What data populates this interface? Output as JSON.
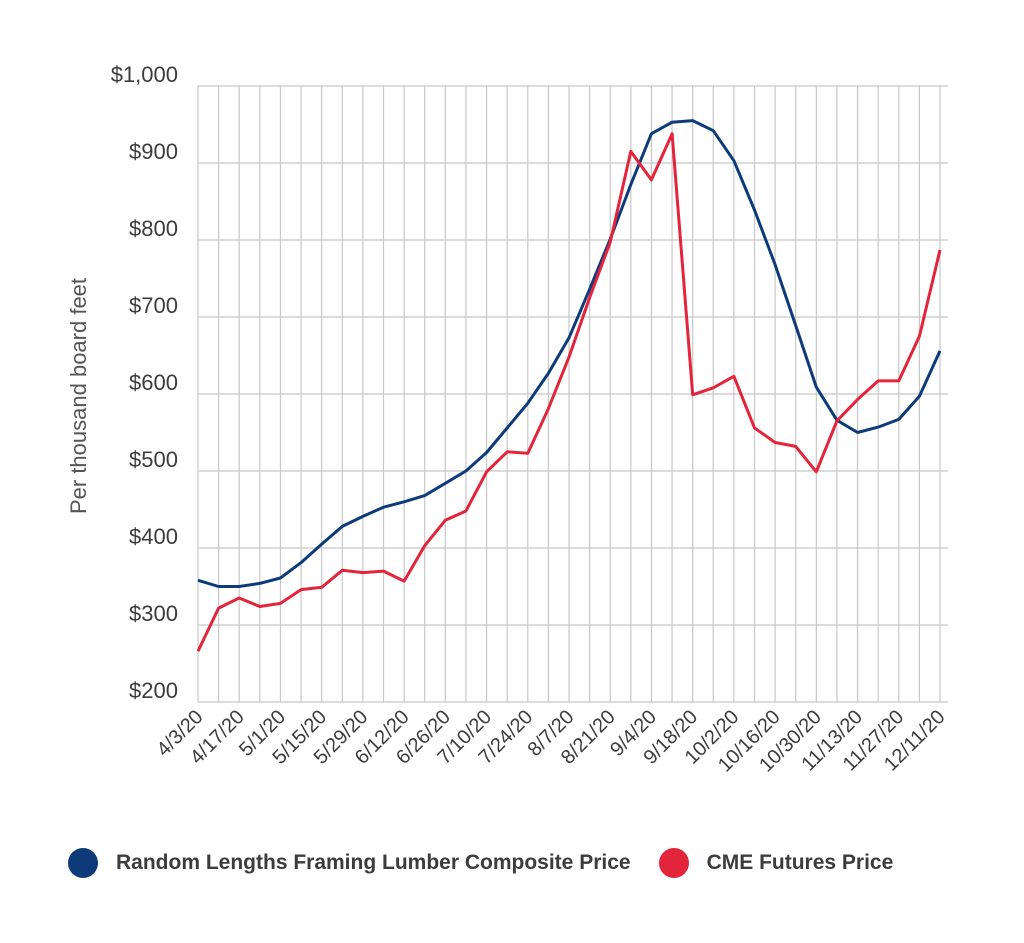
{
  "chart_data": {
    "type": "line",
    "title": "",
    "xlabel": "",
    "ylabel": "Per thousand board feet",
    "ylim": [
      200,
      1000
    ],
    "yticks": [
      200,
      300,
      400,
      500,
      600,
      700,
      800,
      900,
      1000
    ],
    "ytick_labels": [
      "$200",
      "$300",
      "$400",
      "$500",
      "$600",
      "$700",
      "$800",
      "$900",
      "$1,000"
    ],
    "x": [
      "4/3/20",
      "4/10/20",
      "4/17/20",
      "4/24/20",
      "5/1/20",
      "5/8/20",
      "5/15/20",
      "5/22/20",
      "5/29/20",
      "6/5/20",
      "6/12/20",
      "6/19/20",
      "6/26/20",
      "7/3/20",
      "7/10/20",
      "7/17/20",
      "7/24/20",
      "7/31/20",
      "8/7/20",
      "8/14/20",
      "8/21/20",
      "8/28/20",
      "9/4/20",
      "9/11/20",
      "9/18/20",
      "9/25/20",
      "10/2/20",
      "10/9/20",
      "10/16/20",
      "10/23/20",
      "10/30/20",
      "11/6/20",
      "11/13/20",
      "11/20/20",
      "11/27/20",
      "12/4/20",
      "12/11/20"
    ],
    "xtick_labels": [
      "4/3/20",
      "4/17/20",
      "5/1/20",
      "5/15/20",
      "5/29/20",
      "6/12/20",
      "6/26/20",
      "7/10/20",
      "7/24/20",
      "8/7/20",
      "8/21/20",
      "9/4/20",
      "9/18/20",
      "10/2/20",
      "10/16/20",
      "10/30/20",
      "11/13/20",
      "11/27/20",
      "12/11/20"
    ],
    "grid": true,
    "legend_position": "bottom",
    "series": [
      {
        "name": "Random Lengths Framing Lumber Composite Price",
        "color": "#0d3b7a",
        "values": [
          358,
          350,
          350,
          354,
          361,
          381,
          405,
          428,
          441,
          453,
          460,
          468,
          484,
          500,
          524,
          556,
          588,
          627,
          673,
          736,
          801,
          872,
          938,
          953,
          955,
          942,
          903,
          839,
          768,
          689,
          609,
          566,
          550,
          557,
          567,
          597,
          656
        ]
      },
      {
        "name": "CME Futures Price",
        "color": "#e3243b",
        "values": [
          266,
          322,
          335,
          324,
          328,
          346,
          349,
          371,
          368,
          370,
          357,
          403,
          436,
          448,
          499,
          525,
          523,
          581,
          648,
          725,
          797,
          915,
          878,
          938,
          599,
          608,
          623,
          556,
          537,
          532,
          499,
          565,
          593,
          617,
          617,
          675,
          787
        ]
      }
    ]
  }
}
